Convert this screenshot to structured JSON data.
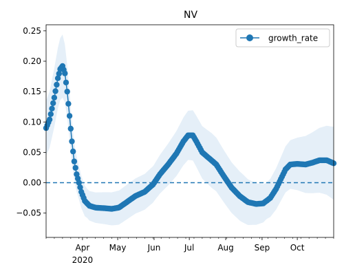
{
  "chart_data": {
    "type": "line",
    "title": "NV",
    "xlabel": "",
    "ylabel": "",
    "x_range": [
      "2020-03-01",
      "2020-11-01"
    ],
    "ylim": [
      -0.09,
      0.26
    ],
    "x_ticks": [
      {
        "date": "2020-04-01",
        "label": "Apr",
        "sublabel": "2020"
      },
      {
        "date": "2020-05-01",
        "label": "May"
      },
      {
        "date": "2020-06-01",
        "label": "Jun"
      },
      {
        "date": "2020-07-01",
        "label": "Jul"
      },
      {
        "date": "2020-08-01",
        "label": "Aug"
      },
      {
        "date": "2020-09-01",
        "label": "Sep"
      },
      {
        "date": "2020-10-01",
        "label": "Oct"
      }
    ],
    "y_ticks": [
      {
        "value": 0.25,
        "label": "0.25"
      },
      {
        "value": 0.2,
        "label": "0.20"
      },
      {
        "value": 0.15,
        "label": "0.15"
      },
      {
        "value": 0.1,
        "label": "0.10"
      },
      {
        "value": 0.05,
        "label": "0.05"
      },
      {
        "value": 0.0,
        "label": "0.00"
      },
      {
        "value": -0.05,
        "label": "−0.05"
      }
    ],
    "grid": false,
    "legend": {
      "position": "top-right",
      "entries": [
        "growth_rate"
      ]
    },
    "reference_line": {
      "y": 0,
      "style": "dashed"
    },
    "colors": {
      "series": "#1f77b4",
      "band": "#c6dbef",
      "refline": "#1f77b4"
    },
    "series": [
      {
        "name": "growth_rate",
        "marker": "circle",
        "anchors": [
          [
            "2020-03-01",
            0.09
          ],
          [
            "2020-03-04",
            0.104
          ],
          [
            "2020-03-08",
            0.14
          ],
          [
            "2020-03-11",
            0.172
          ],
          [
            "2020-03-13",
            0.187
          ],
          [
            "2020-03-15",
            0.192
          ],
          [
            "2020-03-17",
            0.18
          ],
          [
            "2020-03-19",
            0.15
          ],
          [
            "2020-03-21",
            0.11
          ],
          [
            "2020-03-23",
            0.068
          ],
          [
            "2020-03-25",
            0.035
          ],
          [
            "2020-03-27",
            0.014
          ],
          [
            "2020-03-29",
            0.0
          ],
          [
            "2020-03-31",
            -0.015
          ],
          [
            "2020-04-03",
            -0.03
          ],
          [
            "2020-04-07",
            -0.038
          ],
          [
            "2020-04-12",
            -0.041
          ],
          [
            "2020-04-20",
            -0.042
          ],
          [
            "2020-04-26",
            -0.043
          ],
          [
            "2020-05-02",
            -0.041
          ],
          [
            "2020-05-08",
            -0.033
          ],
          [
            "2020-05-16",
            -0.022
          ],
          [
            "2020-05-24",
            -0.015
          ],
          [
            "2020-05-31",
            -0.003
          ],
          [
            "2020-06-06",
            0.014
          ],
          [
            "2020-06-13",
            0.03
          ],
          [
            "2020-06-20",
            0.048
          ],
          [
            "2020-06-26",
            0.068
          ],
          [
            "2020-06-30",
            0.078
          ],
          [
            "2020-07-04",
            0.078
          ],
          [
            "2020-07-07",
            0.068
          ],
          [
            "2020-07-12",
            0.05
          ],
          [
            "2020-07-18",
            0.04
          ],
          [
            "2020-07-24",
            0.03
          ],
          [
            "2020-07-30",
            0.012
          ],
          [
            "2020-08-06",
            -0.008
          ],
          [
            "2020-08-13",
            -0.022
          ],
          [
            "2020-08-20",
            -0.032
          ],
          [
            "2020-08-27",
            -0.035
          ],
          [
            "2020-09-02",
            -0.034
          ],
          [
            "2020-09-08",
            -0.025
          ],
          [
            "2020-09-13",
            -0.01
          ],
          [
            "2020-09-17",
            0.006
          ],
          [
            "2020-09-21",
            0.022
          ],
          [
            "2020-09-25",
            0.03
          ],
          [
            "2020-10-01",
            0.031
          ],
          [
            "2020-10-08",
            0.03
          ],
          [
            "2020-10-14",
            0.033
          ],
          [
            "2020-10-20",
            0.037
          ],
          [
            "2020-10-26",
            0.037
          ],
          [
            "2020-11-01",
            0.032
          ]
        ],
        "band_halfwidth": [
          [
            "2020-03-01",
            0.045
          ],
          [
            "2020-03-15",
            0.052
          ],
          [
            "2020-03-25",
            0.03
          ],
          [
            "2020-04-05",
            0.024
          ],
          [
            "2020-05-01",
            0.028
          ],
          [
            "2020-06-01",
            0.03
          ],
          [
            "2020-06-28",
            0.04
          ],
          [
            "2020-07-20",
            0.045
          ],
          [
            "2020-08-15",
            0.04
          ],
          [
            "2020-09-05",
            0.03
          ],
          [
            "2020-09-25",
            0.04
          ],
          [
            "2020-10-10",
            0.048
          ],
          [
            "2020-11-01",
            0.06
          ]
        ]
      }
    ]
  }
}
